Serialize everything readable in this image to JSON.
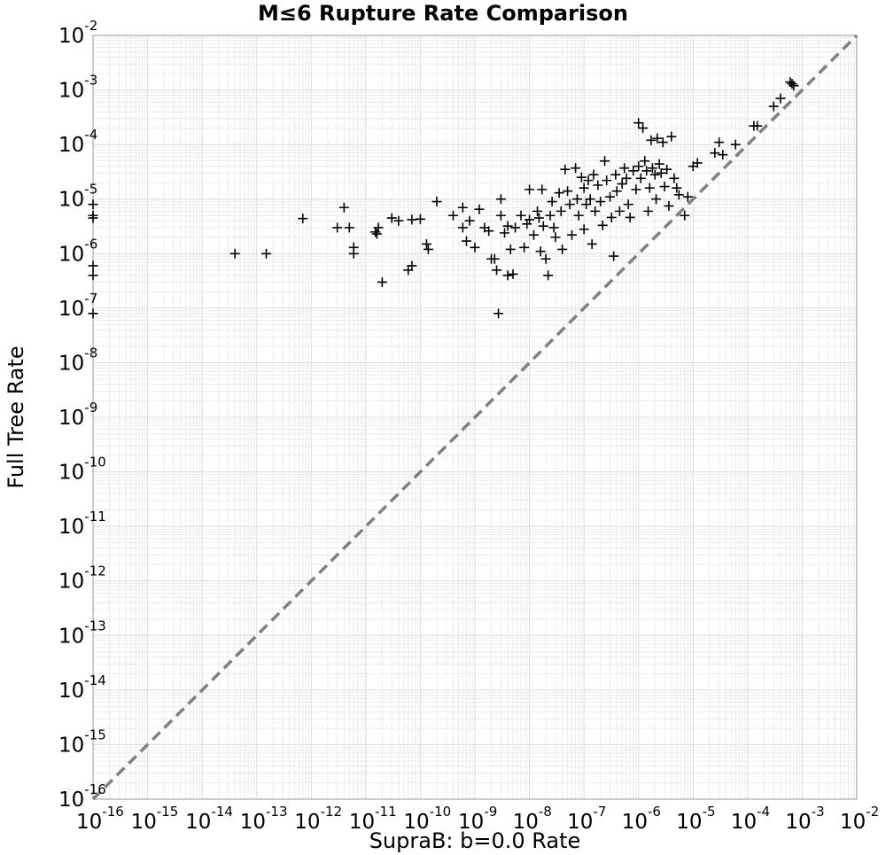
{
  "chart_data": {
    "type": "scatter",
    "title": "M≤6 Rupture Rate Comparison",
    "xlabel": "SupraB: b=0.0 Rate",
    "ylabel": "Full Tree Rate",
    "xscale": "log",
    "yscale": "log",
    "xlim": [
      1e-16,
      0.01
    ],
    "ylim": [
      1e-16,
      0.01
    ],
    "tick_base": "10",
    "x_tick_exponents": [
      "-16",
      "-15",
      "-14",
      "-13",
      "-12",
      "-11",
      "-10",
      "-9",
      "-8",
      "-7",
      "-6",
      "-5",
      "-4",
      "-3",
      "-2"
    ],
    "y_tick_exponents": [
      "-2",
      "-3",
      "-4",
      "-5",
      "-6",
      "-7",
      "-8",
      "-9",
      "-10",
      "-11",
      "-12",
      "-13",
      "-14",
      "-15",
      "-16"
    ],
    "grid": true,
    "marker": "plus",
    "marker_color": "#000000",
    "reference_line": {
      "type": "y=x",
      "style": "dashed",
      "color": "#808080"
    },
    "points": [
      [
        7e-13,
        4.4e-06
      ],
      [
        4e-14,
        1e-06
      ],
      [
        1.5e-13,
        1e-06
      ],
      [
        3e-12,
        3e-06
      ],
      [
        5e-12,
        3e-06
      ],
      [
        4e-12,
        7e-06
      ],
      [
        6e-12,
        1e-06
      ],
      [
        6e-12,
        1.3e-06
      ],
      [
        1.5e-11,
        2.5e-06
      ],
      [
        1.6e-11,
        2.3e-06
      ],
      [
        1.7e-11,
        3e-06
      ],
      [
        2e-11,
        3e-07
      ],
      [
        3e-11,
        4.5e-06
      ],
      [
        4e-11,
        4e-06
      ],
      [
        6e-11,
        5e-07
      ],
      [
        7e-11,
        6e-07
      ],
      [
        7e-11,
        4.2e-06
      ],
      [
        1e-10,
        4.3e-06
      ],
      [
        1.3e-10,
        1.5e-06
      ],
      [
        1.4e-10,
        1.2e-06
      ],
      [
        2e-10,
        9e-06
      ],
      [
        4e-10,
        5e-06
      ],
      [
        6e-10,
        3e-06
      ],
      [
        6e-10,
        7e-06
      ],
      [
        7e-10,
        1.7e-06
      ],
      [
        8e-10,
        4e-06
      ],
      [
        1e-09,
        1.3e-06
      ],
      [
        1.2e-09,
        6.5e-06
      ],
      [
        1.5e-09,
        3e-06
      ],
      [
        1.8e-09,
        2.6e-06
      ],
      [
        2e-09,
        8e-07
      ],
      [
        2.3e-09,
        8e-07
      ],
      [
        2.5e-09,
        5e-07
      ],
      [
        2.7e-09,
        8e-08
      ],
      [
        3e-09,
        1e-05
      ],
      [
        3e-09,
        5e-06
      ],
      [
        3.5e-09,
        2.4e-06
      ],
      [
        4e-09,
        3.2e-06
      ],
      [
        4e-09,
        4e-07
      ],
      [
        4.5e-09,
        1.2e-06
      ],
      [
        5e-09,
        4.2e-07
      ],
      [
        5.5e-09,
        3e-06
      ],
      [
        7e-09,
        5e-06
      ],
      [
        8e-09,
        1.3e-06
      ],
      [
        9e-09,
        3.5e-06
      ],
      [
        1e-08,
        1.5e-05
      ],
      [
        1e-08,
        4.2e-06
      ],
      [
        1.2e-08,
        2.2e-06
      ],
      [
        1.4e-08,
        6e-06
      ],
      [
        1.5e-08,
        4.5e-06
      ],
      [
        1.6e-08,
        1.1e-06
      ],
      [
        1.7e-08,
        1.5e-05
      ],
      [
        1.8e-08,
        3.2e-06
      ],
      [
        2e-08,
        8e-07
      ],
      [
        2.2e-08,
        4e-07
      ],
      [
        2.4e-08,
        5e-06
      ],
      [
        2.6e-08,
        9e-06
      ],
      [
        2.8e-08,
        3e-06
      ],
      [
        3e-08,
        2e-06
      ],
      [
        3.5e-08,
        1.3e-05
      ],
      [
        3.8e-08,
        6e-06
      ],
      [
        4e-08,
        1.2e-06
      ],
      [
        4.5e-08,
        3.5e-05
      ],
      [
        5e-08,
        1.4e-05
      ],
      [
        5.5e-08,
        8e-06
      ],
      [
        6e-08,
        2.2e-06
      ],
      [
        7e-08,
        3.7e-05
      ],
      [
        7.5e-08,
        1e-05
      ],
      [
        8e-08,
        5e-06
      ],
      [
        9e-08,
        2.5e-05
      ],
      [
        1e-07,
        1.6e-05
      ],
      [
        1e-07,
        2.8e-06
      ],
      [
        1.1e-07,
        8e-06
      ],
      [
        1.2e-07,
        2.2e-05
      ],
      [
        1.3e-07,
        1e-05
      ],
      [
        1.4e-07,
        1.5e-06
      ],
      [
        1.5e-07,
        2.8e-05
      ],
      [
        1.6e-07,
        6e-06
      ],
      [
        1.8e-07,
        1.8e-05
      ],
      [
        2e-07,
        9e-06
      ],
      [
        2.2e-07,
        3.3e-06
      ],
      [
        2.4e-07,
        5e-05
      ],
      [
        2.6e-07,
        2.2e-05
      ],
      [
        3e-07,
        1.1e-05
      ],
      [
        3.2e-07,
        4.6e-06
      ],
      [
        3.5e-07,
        9e-07
      ],
      [
        3.8e-07,
        2.8e-05
      ],
      [
        4e-07,
        1.4e-05
      ],
      [
        4.5e-07,
        6e-06
      ],
      [
        5e-07,
        1.9e-05
      ],
      [
        5.5e-07,
        3.7e-05
      ],
      [
        6e-07,
        2.4e-05
      ],
      [
        6.5e-07,
        8e-06
      ],
      [
        7e-07,
        4.6e-06
      ],
      [
        8e-07,
        3.3e-05
      ],
      [
        9e-07,
        1.5e-05
      ],
      [
        1e-06,
        0.00025
      ],
      [
        1e-06,
        4e-05
      ],
      [
        1.1e-06,
        2.4e-05
      ],
      [
        1.2e-06,
        0.0002
      ],
      [
        1.3e-06,
        5e-05
      ],
      [
        1.4e-06,
        3.3e-05
      ],
      [
        1.5e-06,
        6e-06
      ],
      [
        1.6e-06,
        1.6e-05
      ],
      [
        1.7e-06,
        0.00012
      ],
      [
        1.8e-06,
        3.7e-05
      ],
      [
        2e-06,
        2.8e-05
      ],
      [
        2.1e-06,
        1e-05
      ],
      [
        2.2e-06,
        0.00013
      ],
      [
        2.4e-06,
        4.4e-05
      ],
      [
        2.6e-06,
        3e-05
      ],
      [
        2.8e-06,
        0.00011
      ],
      [
        3e-06,
        1.7e-05
      ],
      [
        3.3e-06,
        3.5e-05
      ],
      [
        3.6e-06,
        7.5e-06
      ],
      [
        4e-06,
        0.00014
      ],
      [
        4.5e-06,
        2.4e-05
      ],
      [
        5e-06,
        1.6e-05
      ],
      [
        5.5e-06,
        1.2e-05
      ],
      [
        7e-06,
        5e-06
      ],
      [
        8e-06,
        1.1e-05
      ],
      [
        1e-05,
        4e-05
      ],
      [
        1.2e-05,
        4.6e-05
      ],
      [
        2.5e-05,
        7e-05
      ],
      [
        3e-05,
        0.00011
      ],
      [
        3.5e-05,
        6.5e-05
      ],
      [
        6e-05,
        0.0001
      ],
      [
        0.00013,
        0.00022
      ],
      [
        0.00015,
        0.00022
      ],
      [
        0.0003,
        0.0005
      ],
      [
        0.0004,
        0.0007
      ],
      [
        0.0006,
        0.0014
      ],
      [
        0.00065,
        0.0013
      ],
      [
        0.0007,
        0.0012
      ],
      [
        1e-16,
        8e-06
      ],
      [
        1e-16,
        5e-06
      ],
      [
        1e-16,
        4.5e-06
      ],
      [
        1e-16,
        6e-07
      ],
      [
        1e-16,
        4e-07
      ],
      [
        1e-16,
        8e-08
      ]
    ]
  }
}
